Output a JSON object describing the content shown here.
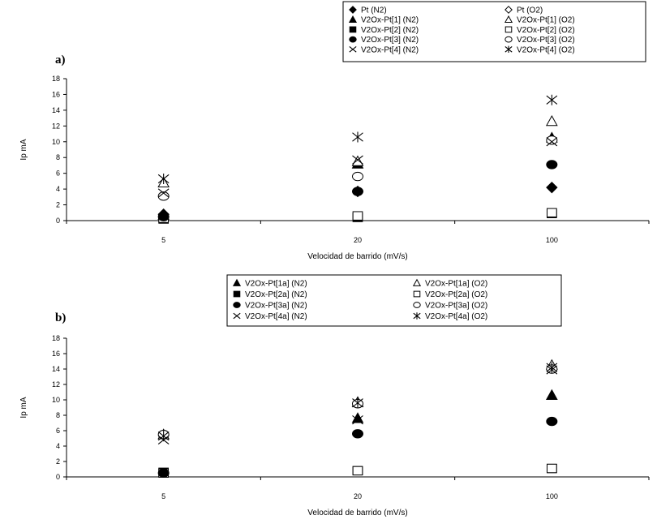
{
  "chart_data": [
    {
      "type": "scatter",
      "panel_label": "a)",
      "xlabel": "Velocidad de barrido (mV/s)",
      "ylabel": "Ip mA",
      "categories": [
        "5",
        "20",
        "100"
      ],
      "ylim": [
        0,
        18
      ],
      "yticks": [
        "0",
        "2",
        "4",
        "6",
        "8",
        "10",
        "12",
        "14",
        "16",
        "18"
      ],
      "grid": false,
      "legend_position": "top-right",
      "series": [
        {
          "name": "Pt (N2)",
          "marker": "diamond",
          "filled": true,
          "values": [
            0.8,
            3.7,
            4.2
          ]
        },
        {
          "name": "Pt (O2)",
          "marker": "diamond",
          "filled": false,
          "values": [
            null,
            null,
            null
          ]
        },
        {
          "name": "V2Ox-Pt[1] (N2)",
          "marker": "triangle",
          "filled": true,
          "values": [
            0.7,
            7.2,
            10.5
          ]
        },
        {
          "name": "V2Ox-Pt[1] (O2)",
          "marker": "triangle",
          "filled": false,
          "values": [
            4.8,
            7.5,
            12.6
          ]
        },
        {
          "name": "V2Ox-Pt[2] (N2)",
          "marker": "square",
          "filled": true,
          "values": [
            0.2,
            0.4,
            0.9
          ]
        },
        {
          "name": "V2Ox-Pt[2] (O2)",
          "marker": "square",
          "filled": false,
          "values": [
            0.3,
            0.6,
            1.0
          ]
        },
        {
          "name": "V2Ox-Pt[3] (N2)",
          "marker": "circle",
          "filled": true,
          "values": [
            0.5,
            3.7,
            7.1
          ]
        },
        {
          "name": "V2Ox-Pt[3] (O2)",
          "marker": "circle",
          "filled": false,
          "values": [
            3.1,
            5.6,
            10.2
          ]
        },
        {
          "name": "V2Ox-Pt[4] (N2)",
          "marker": "x",
          "filled": true,
          "values": [
            3.5,
            7.7,
            10.0
          ]
        },
        {
          "name": "V2Ox-Pt[4] (O2)",
          "marker": "asterisk",
          "filled": true,
          "values": [
            5.3,
            10.6,
            15.3
          ]
        }
      ]
    },
    {
      "type": "scatter",
      "panel_label": "b)",
      "xlabel": "Velocidad de barrido (mV/s)",
      "ylabel": "Ip mA",
      "categories": [
        "5",
        "20",
        "100"
      ],
      "ylim": [
        0,
        18
      ],
      "yticks": [
        "0",
        "2",
        "4",
        "6",
        "8",
        "10",
        "12",
        "14",
        "16",
        "18"
      ],
      "grid": false,
      "legend_position": "top-center",
      "series": [
        {
          "name": "V2Ox-Pt[1a] (N2)",
          "marker": "triangle",
          "filled": true,
          "values": [
            null,
            7.6,
            10.6
          ]
        },
        {
          "name": "V2Ox-Pt[1a] (O2)",
          "marker": "triangle",
          "filled": false,
          "values": [
            5.5,
            9.7,
            14.5
          ]
        },
        {
          "name": "V2Ox-Pt[2a] (N2)",
          "marker": "square",
          "filled": true,
          "values": [
            0.6,
            0.8,
            1.1
          ]
        },
        {
          "name": "V2Ox-Pt[2a] (O2)",
          "marker": "square",
          "filled": false,
          "values": [
            0.5,
            0.8,
            1.1
          ]
        },
        {
          "name": "V2Ox-Pt[3a] (N2)",
          "marker": "circle",
          "filled": true,
          "values": [
            0.5,
            5.6,
            7.2
          ]
        },
        {
          "name": "V2Ox-Pt[3a] (O2)",
          "marker": "circle",
          "filled": false,
          "values": [
            5.5,
            9.5,
            14.0
          ]
        },
        {
          "name": "V2Ox-Pt[4a] (N2)",
          "marker": "x",
          "filled": true,
          "values": [
            4.8,
            7.4,
            13.9
          ]
        },
        {
          "name": "V2Ox-Pt[4a] (O2)",
          "marker": "asterisk",
          "filled": true,
          "values": [
            5.3,
            9.6,
            14.2
          ]
        }
      ]
    }
  ]
}
